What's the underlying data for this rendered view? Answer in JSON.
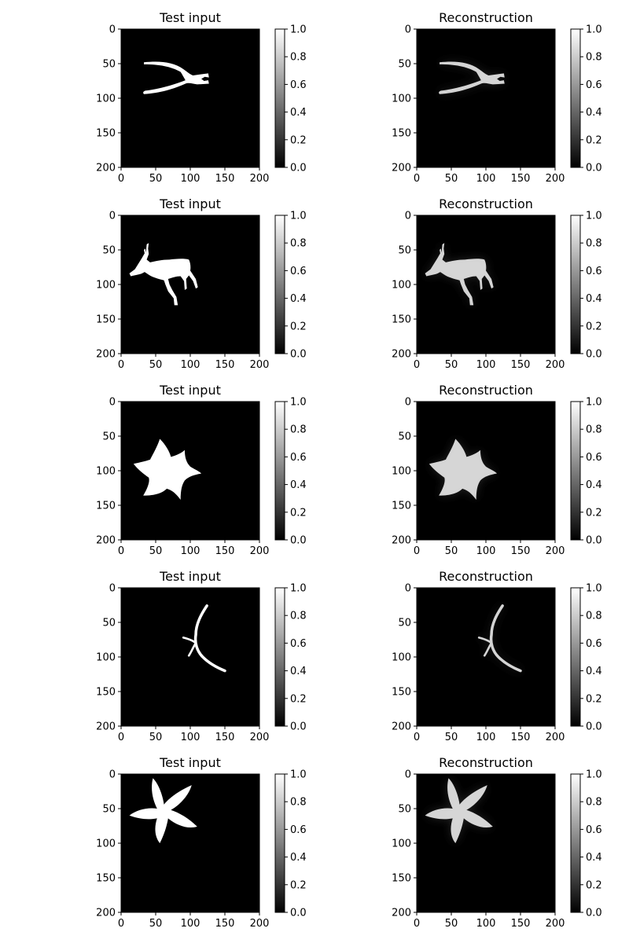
{
  "chart_data": [
    {
      "type": "heatmap",
      "title": "Test input",
      "image": "pliers-silhouette",
      "xlim": [
        0,
        200
      ],
      "ylim": [
        200,
        0
      ],
      "xticks": [
        "0",
        "50",
        "100",
        "150",
        "200"
      ],
      "yticks": [
        "0",
        "50",
        "100",
        "150",
        "200"
      ],
      "colorbar": {
        "ticks": [
          "0.0",
          "0.2",
          "0.4",
          "0.6",
          "0.8",
          "1.0"
        ],
        "range": [
          0,
          1
        ],
        "colormap": "gray"
      }
    },
    {
      "type": "heatmap",
      "title": "Reconstruction",
      "image": "pliers-reconstruction",
      "xlim": [
        0,
        200
      ],
      "ylim": [
        200,
        0
      ],
      "xticks": [
        "0",
        "50",
        "100",
        "150",
        "200"
      ],
      "yticks": [
        "0",
        "50",
        "100",
        "150",
        "200"
      ],
      "colorbar": {
        "ticks": [
          "0.0",
          "0.2",
          "0.4",
          "0.6",
          "0.8",
          "1.0"
        ],
        "range": [
          0,
          1
        ],
        "colormap": "gray"
      }
    },
    {
      "type": "heatmap",
      "title": "Test input",
      "image": "deer-silhouette",
      "xlim": [
        0,
        200
      ],
      "ylim": [
        200,
        0
      ],
      "xticks": [
        "0",
        "50",
        "100",
        "150",
        "200"
      ],
      "yticks": [
        "0",
        "50",
        "100",
        "150",
        "200"
      ],
      "colorbar": {
        "ticks": [
          "0.0",
          "0.2",
          "0.4",
          "0.6",
          "0.8",
          "1.0"
        ],
        "range": [
          0,
          1
        ],
        "colormap": "gray"
      }
    },
    {
      "type": "heatmap",
      "title": "Reconstruction",
      "image": "deer-reconstruction",
      "xlim": [
        0,
        200
      ],
      "ylim": [
        200,
        0
      ],
      "xticks": [
        "0",
        "50",
        "100",
        "150",
        "200"
      ],
      "yticks": [
        "0",
        "50",
        "100",
        "150",
        "200"
      ],
      "colorbar": {
        "ticks": [
          "0.0",
          "0.2",
          "0.4",
          "0.6",
          "0.8",
          "1.0"
        ],
        "range": [
          0,
          1
        ],
        "colormap": "gray"
      }
    },
    {
      "type": "heatmap",
      "title": "Test input",
      "image": "flower-silhouette",
      "xlim": [
        0,
        200
      ],
      "ylim": [
        200,
        0
      ],
      "xticks": [
        "0",
        "50",
        "100",
        "150",
        "200"
      ],
      "yticks": [
        "0",
        "50",
        "100",
        "150",
        "200"
      ],
      "colorbar": {
        "ticks": [
          "0.0",
          "0.2",
          "0.4",
          "0.6",
          "0.8",
          "1.0"
        ],
        "range": [
          0,
          1
        ],
        "colormap": "gray"
      }
    },
    {
      "type": "heatmap",
      "title": "Reconstruction",
      "image": "flower-reconstruction",
      "xlim": [
        0,
        200
      ],
      "ylim": [
        200,
        0
      ],
      "xticks": [
        "0",
        "50",
        "100",
        "150",
        "200"
      ],
      "yticks": [
        "0",
        "50",
        "100",
        "150",
        "200"
      ],
      "colorbar": {
        "ticks": [
          "0.0",
          "0.2",
          "0.4",
          "0.6",
          "0.8",
          "1.0"
        ],
        "range": [
          0,
          1
        ],
        "colormap": "gray"
      }
    },
    {
      "type": "heatmap",
      "title": "Test input",
      "image": "curved-branch-silhouette",
      "xlim": [
        0,
        200
      ],
      "ylim": [
        200,
        0
      ],
      "xticks": [
        "0",
        "50",
        "100",
        "150",
        "200"
      ],
      "yticks": [
        "0",
        "50",
        "100",
        "150",
        "200"
      ],
      "colorbar": {
        "ticks": [
          "0.0",
          "0.2",
          "0.4",
          "0.6",
          "0.8",
          "1.0"
        ],
        "range": [
          0,
          1
        ],
        "colormap": "gray"
      }
    },
    {
      "type": "heatmap",
      "title": "Reconstruction",
      "image": "curved-branch-reconstruction",
      "xlim": [
        0,
        200
      ],
      "ylim": [
        200,
        0
      ],
      "xticks": [
        "0",
        "50",
        "100",
        "150",
        "200"
      ],
      "yticks": [
        "0",
        "50",
        "100",
        "150",
        "200"
      ],
      "colorbar": {
        "ticks": [
          "0.0",
          "0.2",
          "0.4",
          "0.6",
          "0.8",
          "1.0"
        ],
        "range": [
          0,
          1
        ],
        "colormap": "gray"
      }
    },
    {
      "type": "heatmap",
      "title": "Test input",
      "image": "leaf-silhouette",
      "xlim": [
        0,
        200
      ],
      "ylim": [
        200,
        0
      ],
      "xticks": [
        "0",
        "50",
        "100",
        "150",
        "200"
      ],
      "yticks": [
        "0",
        "50",
        "100",
        "150",
        "200"
      ],
      "colorbar": {
        "ticks": [
          "0.0",
          "0.2",
          "0.4",
          "0.6",
          "0.8",
          "1.0"
        ],
        "range": [
          0,
          1
        ],
        "colormap": "gray"
      }
    },
    {
      "type": "heatmap",
      "title": "Reconstruction",
      "image": "leaf-reconstruction",
      "xlim": [
        0,
        200
      ],
      "ylim": [
        200,
        0
      ],
      "xticks": [
        "0",
        "50",
        "100",
        "150",
        "200"
      ],
      "yticks": [
        "0",
        "50",
        "100",
        "150",
        "200"
      ],
      "colorbar": {
        "ticks": [
          "0.0",
          "0.2",
          "0.4",
          "0.6",
          "0.8",
          "1.0"
        ],
        "range": [
          0,
          1
        ],
        "colormap": "gray"
      }
    }
  ],
  "colors": {
    "background": "#000000",
    "foreground": "#ffffff",
    "reconstruction_foreground": "#e6e6e6",
    "noise": "#1e1e1e"
  }
}
